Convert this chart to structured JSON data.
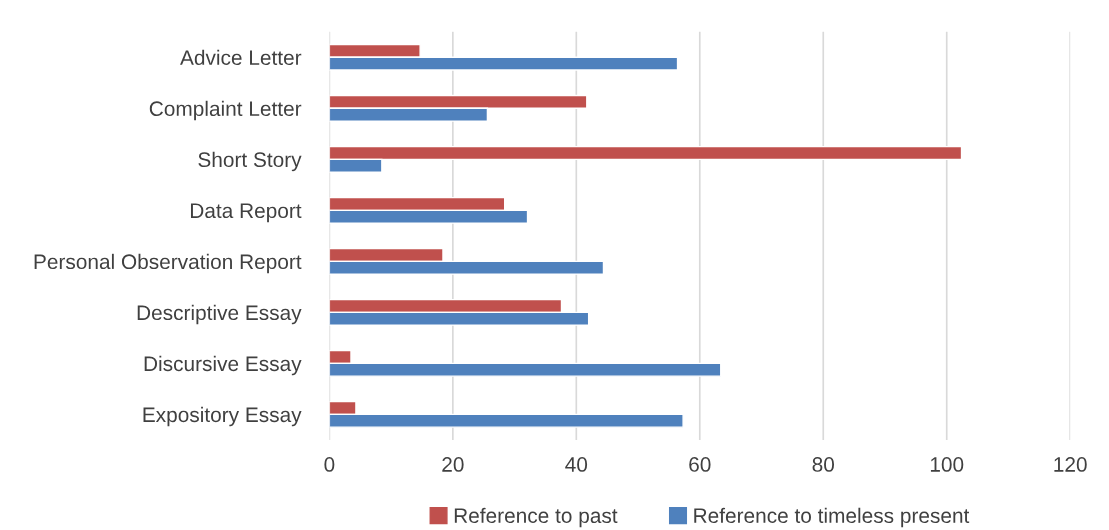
{
  "chart_data": {
    "type": "bar",
    "orientation": "horizontal",
    "categories": [
      "Advice Letter",
      "Complaint Letter",
      "Short Story",
      "Data Report",
      "Personal Observation Report",
      "Descriptive Essay",
      "Discursive Essay",
      "Expository Essay"
    ],
    "series": [
      {
        "name": "Reference to past",
        "color": "#c0504d",
        "values": [
          14.7,
          41.7,
          102.4,
          28.4,
          18.4,
          37.6,
          3.5,
          4.3
        ]
      },
      {
        "name": "Reference to timeless present",
        "color": "#4f81bd",
        "values": [
          56.4,
          25.6,
          8.5,
          32.1,
          44.4,
          42.0,
          63.4,
          57.3
        ]
      }
    ],
    "xlim": [
      0,
      120
    ],
    "xticks": [
      0,
      20,
      40,
      60,
      80,
      100,
      120
    ],
    "grid": "x",
    "legend": "bottom"
  }
}
